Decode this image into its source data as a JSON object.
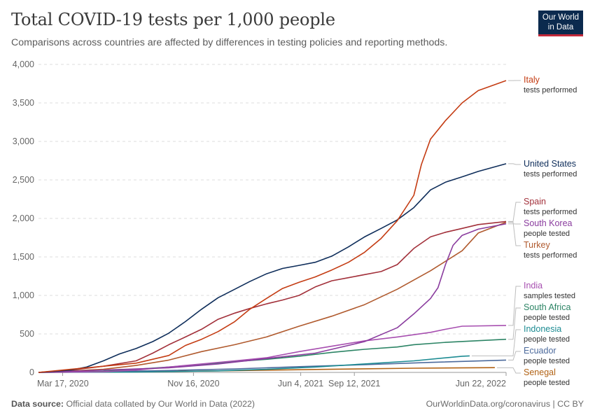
{
  "header": {
    "title": "Total COVID-19 tests per 1,000 people",
    "subtitle": "Comparisons across countries are affected by differences in testing policies and reporting methods.",
    "logo_line1": "Our World",
    "logo_line2": "in Data"
  },
  "footer": {
    "source_label": "Data source:",
    "source_text": " Official data collated by Our World in Data (2022)",
    "right_text": "OurWorldinData.org/coronavirus | CC BY"
  },
  "chart_data": {
    "type": "line",
    "title": "Total COVID-19 tests per 1,000 people",
    "ylim": [
      0,
      4000
    ],
    "y_ticks": [
      0,
      500,
      1000,
      1500,
      2000,
      2500,
      3000,
      3500,
      4000
    ],
    "y_tick_labels": [
      "0",
      "500",
      "1,000",
      "1,500",
      "2,000",
      "2,500",
      "3,000",
      "3,500",
      "4,000"
    ],
    "xlim": [
      "2020-02-01",
      "2022-06-22"
    ],
    "x_ticks": [
      "2020-03-17",
      "2020-11-16",
      "2021-06-04",
      "2021-09-12",
      "2022-06-22"
    ],
    "x_tick_labels": [
      "Mar 17, 2020",
      "Nov 16, 2020",
      "Jun 4, 2021",
      "Sep 12, 2021",
      "Jun 22, 2022"
    ],
    "grid": "horizontal dashed",
    "legend": "right end labels",
    "series": [
      {
        "name": "Italy",
        "note": "tests performed",
        "color": "#c43c13",
        "label_y_value": 3790,
        "points": [
          [
            "2020-02-01",
            0
          ],
          [
            "2020-04-01",
            40
          ],
          [
            "2020-06-01",
            80
          ],
          [
            "2020-08-01",
            120
          ],
          [
            "2020-10-01",
            220
          ],
          [
            "2020-11-01",
            350
          ],
          [
            "2020-12-01",
            430
          ],
          [
            "2021-01-01",
            530
          ],
          [
            "2021-02-01",
            660
          ],
          [
            "2021-03-01",
            820
          ],
          [
            "2021-04-01",
            960
          ],
          [
            "2021-05-01",
            1090
          ],
          [
            "2021-06-01",
            1170
          ],
          [
            "2021-07-01",
            1240
          ],
          [
            "2021-08-01",
            1330
          ],
          [
            "2021-09-01",
            1430
          ],
          [
            "2021-10-01",
            1560
          ],
          [
            "2021-11-01",
            1740
          ],
          [
            "2021-12-01",
            1970
          ],
          [
            "2022-01-01",
            2300
          ],
          [
            "2022-01-15",
            2700
          ],
          [
            "2022-02-01",
            3030
          ],
          [
            "2022-03-01",
            3270
          ],
          [
            "2022-04-01",
            3500
          ],
          [
            "2022-05-01",
            3660
          ],
          [
            "2022-06-22",
            3790
          ]
        ]
      },
      {
        "name": "United States",
        "note": "tests performed",
        "color": "#0e2d5a",
        "label_y_value": 2710,
        "points": [
          [
            "2020-02-01",
            0
          ],
          [
            "2020-04-01",
            30
          ],
          [
            "2020-05-01",
            70
          ],
          [
            "2020-06-01",
            150
          ],
          [
            "2020-07-01",
            240
          ],
          [
            "2020-08-01",
            310
          ],
          [
            "2020-09-01",
            400
          ],
          [
            "2020-10-01",
            510
          ],
          [
            "2020-11-01",
            660
          ],
          [
            "2020-12-01",
            820
          ],
          [
            "2021-01-01",
            970
          ],
          [
            "2021-02-01",
            1080
          ],
          [
            "2021-03-01",
            1180
          ],
          [
            "2021-04-01",
            1280
          ],
          [
            "2021-05-01",
            1350
          ],
          [
            "2021-06-01",
            1390
          ],
          [
            "2021-07-01",
            1430
          ],
          [
            "2021-08-01",
            1510
          ],
          [
            "2021-09-01",
            1630
          ],
          [
            "2021-10-01",
            1760
          ],
          [
            "2021-11-01",
            1870
          ],
          [
            "2021-12-01",
            1980
          ],
          [
            "2022-01-01",
            2140
          ],
          [
            "2022-02-01",
            2370
          ],
          [
            "2022-03-01",
            2470
          ],
          [
            "2022-04-01",
            2540
          ],
          [
            "2022-05-01",
            2610
          ],
          [
            "2022-06-22",
            2710
          ]
        ]
      },
      {
        "name": "Spain",
        "note": "tests performed",
        "color": "#a2303a",
        "label_y_value": 1960,
        "points": [
          [
            "2020-02-01",
            0
          ],
          [
            "2020-04-01",
            30
          ],
          [
            "2020-06-01",
            80
          ],
          [
            "2020-08-01",
            150
          ],
          [
            "2020-09-01",
            250
          ],
          [
            "2020-10-01",
            360
          ],
          [
            "2020-11-01",
            460
          ],
          [
            "2020-12-01",
            560
          ],
          [
            "2021-01-01",
            690
          ],
          [
            "2021-02-01",
            770
          ],
          [
            "2021-03-01",
            830
          ],
          [
            "2021-04-01",
            890
          ],
          [
            "2021-05-01",
            940
          ],
          [
            "2021-06-01",
            1000
          ],
          [
            "2021-07-01",
            1110
          ],
          [
            "2021-08-01",
            1190
          ],
          [
            "2021-09-01",
            1230
          ],
          [
            "2021-10-01",
            1270
          ],
          [
            "2021-11-01",
            1310
          ],
          [
            "2021-12-01",
            1400
          ],
          [
            "2022-01-01",
            1610
          ],
          [
            "2022-02-01",
            1760
          ],
          [
            "2022-03-01",
            1820
          ],
          [
            "2022-04-01",
            1870
          ],
          [
            "2022-05-01",
            1920
          ],
          [
            "2022-06-22",
            1960
          ]
        ]
      },
      {
        "name": "South Korea",
        "note": "people tested",
        "color": "#8a3c9e",
        "label_y_value": 1930,
        "points": [
          [
            "2020-02-01",
            0
          ],
          [
            "2020-06-01",
            30
          ],
          [
            "2020-10-01",
            60
          ],
          [
            "2021-01-01",
            110
          ],
          [
            "2021-04-01",
            180
          ],
          [
            "2021-07-01",
            250
          ],
          [
            "2021-10-01",
            400
          ],
          [
            "2021-12-01",
            580
          ],
          [
            "2022-01-01",
            760
          ],
          [
            "2022-02-01",
            960
          ],
          [
            "2022-02-15",
            1100
          ],
          [
            "2022-03-01",
            1400
          ],
          [
            "2022-03-15",
            1650
          ],
          [
            "2022-04-01",
            1780
          ],
          [
            "2022-05-01",
            1860
          ],
          [
            "2022-06-22",
            1930
          ]
        ]
      },
      {
        "name": "Turkey",
        "note": "tests performed",
        "color": "#b05a2e",
        "label_y_value": 1950,
        "points": [
          [
            "2020-02-01",
            0
          ],
          [
            "2020-06-01",
            40
          ],
          [
            "2020-08-01",
            90
          ],
          [
            "2020-10-01",
            160
          ],
          [
            "2020-12-01",
            270
          ],
          [
            "2021-02-01",
            360
          ],
          [
            "2021-04-01",
            460
          ],
          [
            "2021-06-01",
            600
          ],
          [
            "2021-08-01",
            730
          ],
          [
            "2021-10-01",
            880
          ],
          [
            "2021-12-01",
            1080
          ],
          [
            "2022-02-01",
            1320
          ],
          [
            "2022-04-01",
            1580
          ],
          [
            "2022-05-01",
            1810
          ],
          [
            "2022-06-22",
            1950
          ]
        ]
      },
      {
        "name": "India",
        "note": "samples tested",
        "color": "#a74fb0",
        "label_y_value": 610,
        "points": [
          [
            "2020-02-01",
            0
          ],
          [
            "2020-06-01",
            8
          ],
          [
            "2020-08-01",
            30
          ],
          [
            "2020-10-01",
            70
          ],
          [
            "2020-12-01",
            110
          ],
          [
            "2021-02-01",
            150
          ],
          [
            "2021-04-01",
            190
          ],
          [
            "2021-06-01",
            270
          ],
          [
            "2021-08-01",
            340
          ],
          [
            "2021-10-01",
            410
          ],
          [
            "2021-12-01",
            460
          ],
          [
            "2022-02-01",
            520
          ],
          [
            "2022-03-01",
            560
          ],
          [
            "2022-04-01",
            600
          ],
          [
            "2022-06-22",
            610
          ]
        ]
      },
      {
        "name": "South Africa",
        "note": "people tested",
        "color": "#2c8465",
        "label_y_value": 430,
        "points": [
          [
            "2020-02-01",
            0
          ],
          [
            "2020-06-01",
            15
          ],
          [
            "2020-08-01",
            40
          ],
          [
            "2020-10-01",
            70
          ],
          [
            "2020-12-01",
            100
          ],
          [
            "2021-02-01",
            140
          ],
          [
            "2021-04-01",
            170
          ],
          [
            "2021-06-01",
            210
          ],
          [
            "2021-08-01",
            260
          ],
          [
            "2021-10-01",
            300
          ],
          [
            "2021-12-01",
            330
          ],
          [
            "2022-01-01",
            360
          ],
          [
            "2022-03-01",
            390
          ],
          [
            "2022-06-22",
            430
          ]
        ]
      },
      {
        "name": "Indonesia",
        "note": "people tested",
        "color": "#1c8b92",
        "label_y_value": 215,
        "points": [
          [
            "2020-02-01",
            0
          ],
          [
            "2020-08-01",
            5
          ],
          [
            "2021-01-01",
            20
          ],
          [
            "2021-04-01",
            40
          ],
          [
            "2021-07-01",
            70
          ],
          [
            "2021-10-01",
            110
          ],
          [
            "2022-01-01",
            150
          ],
          [
            "2022-04-01",
            210
          ],
          [
            "2022-04-15",
            215
          ]
        ]
      },
      {
        "name": "Ecuador",
        "note": "people tested",
        "color": "#4c6a9c",
        "label_y_value": 160,
        "points": [
          [
            "2020-02-01",
            0
          ],
          [
            "2020-06-01",
            10
          ],
          [
            "2020-10-01",
            25
          ],
          [
            "2021-02-01",
            45
          ],
          [
            "2021-06-01",
            75
          ],
          [
            "2021-10-01",
            100
          ],
          [
            "2022-02-01",
            130
          ],
          [
            "2022-06-22",
            160
          ]
        ]
      },
      {
        "name": "Senegal",
        "note": "people tested",
        "color": "#b16214",
        "label_y_value": 60,
        "points": [
          [
            "2020-02-01",
            0
          ],
          [
            "2020-08-01",
            8
          ],
          [
            "2021-01-01",
            20
          ],
          [
            "2021-07-01",
            38
          ],
          [
            "2022-01-01",
            55
          ],
          [
            "2022-06-01",
            62
          ]
        ]
      }
    ]
  }
}
